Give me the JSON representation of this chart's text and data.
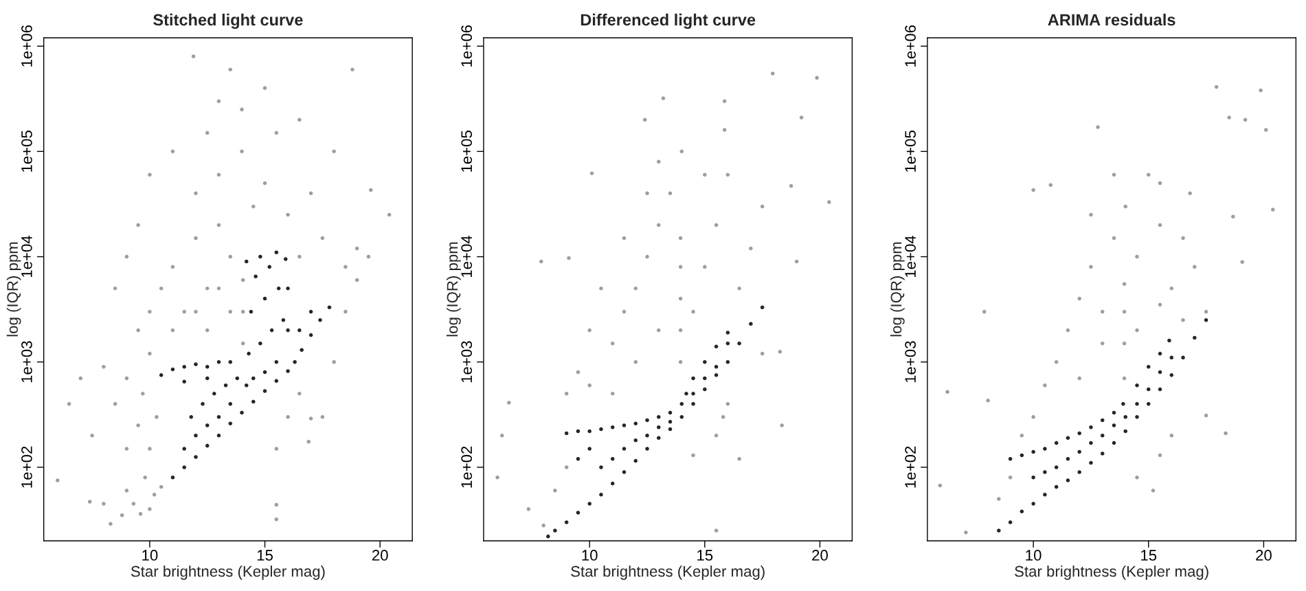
{
  "chart_data": [
    {
      "type": "scatter",
      "title": "Stitched light curve",
      "xlabel": "Star brightness (Kepler mag)",
      "ylabel": "log (IQR) ppm",
      "log": "y",
      "marker": "circle",
      "xlim": [
        5.4,
        21.4
      ],
      "ylim": [
        20,
        1200000
      ],
      "xticks": [
        10,
        15,
        20
      ],
      "yticks": [
        {
          "value": 100,
          "label": "1e+02"
        },
        {
          "value": 1000,
          "label": "1e+03"
        },
        {
          "value": 10000,
          "label": "1e+04"
        },
        {
          "value": 100000,
          "label": "1e+05"
        },
        {
          "value": 1000000,
          "label": "1e+06"
        }
      ],
      "series": [
        {
          "color": "#9e9e9e",
          "x": [
            8.3,
            8.8,
            9.3,
            9.6,
            10.0,
            10.2,
            9.0,
            9.8,
            10.5,
            8.0,
            7.4,
            6.0,
            9.0,
            9.5,
            8.5,
            9.0,
            8.0,
            7.0,
            6.5,
            7.5,
            10.0,
            10.3,
            9.7,
            10.0,
            9.5,
            10.0,
            10.5,
            11.0,
            11.5,
            12.0,
            12.5,
            13.0,
            13.5,
            12.0,
            13.0,
            14.0,
            14.5,
            15.0,
            15.5,
            14.0,
            13.0,
            12.5,
            11.0,
            10.0,
            9.5,
            9.0,
            8.5,
            11.9,
            13.5,
            15.0,
            16.0,
            16.5,
            17.0,
            17.5,
            18.0,
            18.5,
            19.0,
            18.8,
            19.6,
            20.4,
            16.5,
            17.5,
            17.0,
            16.9,
            16.5,
            18.0,
            18.5,
            19.0,
            19.5,
            15.5,
            16.0,
            15.5,
            15.5,
            14.05,
            14.05,
            14.05,
            11.0,
            12.0,
            13.0,
            12.5,
            13.5
          ],
          "values": [
            29,
            35,
            45,
            36,
            40,
            55,
            60,
            80,
            65,
            45,
            47,
            75,
            150,
            250,
            400,
            700,
            900,
            700,
            400,
            200,
            150,
            300,
            500,
            1200,
            2000,
            3000,
            5000,
            8000,
            3000,
            15000,
            5000,
            20000,
            10000,
            40000,
            60000,
            100000,
            30000,
            50000,
            150000,
            250000,
            300000,
            150000,
            100000,
            60000,
            20000,
            10000,
            5000,
            800000,
            600000,
            400000,
            25000,
            10000,
            40000,
            15000,
            100000,
            8000,
            12000,
            600000,
            43000,
            25000,
            200000,
            300,
            290,
            175,
            500,
            1000,
            3000,
            6000,
            10000,
            150,
            300,
            44,
            32,
            1500,
            3000,
            6000,
            2000,
            3000,
            5000,
            2000,
            3000
          ]
        },
        {
          "color": "#262626",
          "x": [
            11.0,
            11.5,
            12.0,
            12.5,
            13.0,
            13.5,
            14.0,
            14.5,
            15.0,
            15.5,
            16.0,
            11.5,
            12.0,
            12.5,
            13.0,
            13.5,
            11.8,
            12.3,
            12.8,
            13.3,
            13.8,
            10.5,
            11.0,
            11.5,
            12.0,
            12.5,
            13.0,
            13.5,
            11.5,
            12.5,
            14.2,
            14.5,
            15.0,
            15.5,
            14.3,
            14.8,
            15.3,
            15.8,
            14.4,
            15.0,
            15.6,
            14.6,
            15.2,
            15.9,
            16.0,
            16.0,
            14.2,
            15.5,
            14.8,
            16.3,
            16.6,
            17.0,
            17.4,
            17.8,
            16.5,
            17.0
          ],
          "values": [
            80,
            100,
            125,
            160,
            200,
            260,
            330,
            420,
            530,
            660,
            820,
            150,
            200,
            250,
            300,
            400,
            300,
            400,
            500,
            600,
            700,
            750,
            850,
            900,
            950,
            900,
            1000,
            1000,
            650,
            700,
            600,
            700,
            800,
            1000,
            1200,
            1500,
            2000,
            2500,
            3000,
            4000,
            5000,
            6500,
            8000,
            9500,
            5000,
            2000,
            9000,
            11000,
            10000,
            1000,
            1300,
            1800,
            2500,
            3300,
            2000,
            3000
          ]
        }
      ]
    },
    {
      "type": "scatter",
      "title": "Differenced light curve",
      "xlabel": "Star brightness (Kepler mag)",
      "ylabel": "log (IQR) ppm",
      "log": "y",
      "marker": "circle",
      "xlim": [
        5.4,
        21.4
      ],
      "ylim": [
        20,
        1200000
      ],
      "xticks": [
        10,
        15,
        20
      ],
      "yticks": [
        {
          "value": 100,
          "label": "1e+02"
        },
        {
          "value": 1000,
          "label": "1e+03"
        },
        {
          "value": 10000,
          "label": "1e+04"
        },
        {
          "value": 100000,
          "label": "1e+05"
        },
        {
          "value": 1000000,
          "label": "1e+06"
        }
      ],
      "series": [
        {
          "color": "#9e9e9e",
          "x": [
            6.0,
            6.2,
            6.5,
            7.35,
            8.0,
            7.9,
            9.1,
            10.1,
            12.4,
            13.2,
            15.86,
            15.86,
            17.95,
            19.87,
            19.2,
            20.4,
            18.75,
            18.99,
            18.27,
            18.35,
            17.5,
            11.0,
            11.5,
            12.0,
            12.5,
            13.0,
            13.5,
            12.0,
            13.0,
            14.5,
            15.0,
            15.5,
            15.0,
            14.0,
            13.0,
            12.5,
            11.5,
            10.5,
            10.0,
            9.5,
            9.0,
            16.5,
            17.0,
            16.0,
            17.5,
            15.5,
            16.0,
            15.8,
            14.5,
            11.0,
            10.0,
            9.0,
            8.5,
            16.5,
            15.5,
            13.95,
            13.95,
            13.95,
            13.95,
            13.95
          ],
          "values": [
            80,
            200,
            410,
            40,
            28,
            9000,
            9700,
            62000,
            200000,
            320000,
            300000,
            160000,
            550000,
            500000,
            210000,
            33000,
            47000,
            9000,
            1250,
            250,
            1200,
            1500,
            3000,
            5000,
            10000,
            20000,
            40000,
            1000,
            2000,
            3000,
            8000,
            20000,
            60000,
            100000,
            80000,
            40000,
            15000,
            5000,
            2000,
            800,
            500,
            5000,
            12000,
            60000,
            30000,
            200,
            400,
            300,
            130,
            500,
            600,
            100,
            60,
            120,
            25,
            1000,
            2000,
            4000,
            8000,
            15000
          ]
        },
        {
          "color": "#262626",
          "x": [
            8.2,
            8.5,
            9.0,
            9.5,
            10.0,
            10.5,
            11.0,
            11.5,
            12.0,
            12.5,
            13.0,
            13.5,
            14.0,
            14.5,
            15.0,
            15.5,
            16.0,
            16.5,
            17.0,
            17.5,
            9.0,
            9.5,
            10.0,
            10.5,
            11.0,
            11.5,
            12.0,
            12.5,
            13.0,
            13.5,
            10.5,
            11.0,
            11.5,
            12.0,
            12.5,
            13.0,
            13.5,
            14.0,
            14.5,
            15.0,
            15.5,
            16.0,
            15.5,
            15.0,
            14.5,
            14.2,
            16.0,
            10.0,
            9.5
          ],
          "values": [
            22,
            25,
            30,
            37,
            45,
            55,
            70,
            90,
            115,
            150,
            190,
            230,
            300,
            400,
            550,
            750,
            1000,
            1500,
            2300,
            3300,
            210,
            220,
            220,
            230,
            240,
            250,
            260,
            280,
            300,
            330,
            100,
            120,
            150,
            180,
            200,
            240,
            270,
            400,
            500,
            700,
            900,
            1500,
            1400,
            1000,
            700,
            500,
            1900,
            150,
            120
          ]
        }
      ]
    },
    {
      "type": "scatter",
      "title": "ARIMA residuals",
      "xlabel": "Star brightness (Kepler mag)",
      "ylabel": "log (IQR) ppm",
      "log": "y",
      "marker": "circle",
      "xlim": [
        5.4,
        21.4
      ],
      "ylim": [
        20,
        1200000
      ],
      "xticks": [
        10,
        15,
        20
      ],
      "yticks": [
        {
          "value": 100,
          "label": "1e+02"
        },
        {
          "value": 1000,
          "label": "1e+03"
        },
        {
          "value": 10000,
          "label": "1e+04"
        },
        {
          "value": 100000,
          "label": "1e+05"
        },
        {
          "value": 1000000,
          "label": "1e+06"
        }
      ],
      "series": [
        {
          "color": "#9e9e9e",
          "x": [
            17.95,
            19.87,
            18.5,
            19.2,
            20.1,
            20.4,
            12.8,
            10.0,
            10.75,
            6.27,
            5.95,
            7.07,
            8.03,
            7.87,
            18.35,
            17.5,
            19.07,
            18.67,
            11.0,
            11.5,
            12.0,
            12.5,
            13.0,
            13.5,
            14.0,
            15.0,
            15.5,
            14.5,
            16.0,
            17.0,
            17.5,
            12.0,
            13.0,
            14.5,
            15.5,
            16.5,
            10.5,
            10.0,
            9.5,
            9.0,
            8.5,
            15.5,
            16.0,
            15.2,
            14.5,
            12.5,
            13.5,
            15.5,
            16.5,
            16.8,
            13.95,
            13.95,
            13.95,
            13.95
          ],
          "values": [
            410000,
            380000,
            210000,
            200000,
            160000,
            28000,
            170000,
            43000,
            48000,
            520,
            67,
            24,
            430,
            3000,
            210,
            310,
            8900,
            24000,
            1000,
            2000,
            4000,
            8000,
            3000,
            15000,
            30000,
            60000,
            20000,
            10000,
            5000,
            8000,
            3000,
            700,
            1500,
            2000,
            3500,
            2500,
            600,
            300,
            200,
            80,
            50,
            130,
            200,
            60,
            80,
            25000,
            60000,
            50000,
            15000,
            40000,
            700,
            1500,
            3000,
            5500
          ]
        },
        {
          "color": "#262626",
          "x": [
            8.5,
            9.0,
            9.5,
            10.0,
            10.5,
            11.0,
            11.5,
            12.0,
            12.5,
            13.0,
            13.5,
            14.0,
            14.5,
            15.0,
            15.5,
            16.0,
            16.5,
            17.0,
            17.5,
            9.0,
            9.5,
            10.0,
            10.5,
            11.0,
            11.5,
            12.0,
            12.5,
            13.0,
            13.5,
            13.9,
            10.0,
            10.5,
            11.0,
            11.5,
            12.0,
            12.5,
            13.0,
            13.5,
            14.0,
            14.5,
            15.0,
            15.5,
            16.0,
            15.9,
            15.5,
            14.5,
            15.0
          ],
          "values": [
            25,
            30,
            38,
            45,
            55,
            65,
            75,
            90,
            110,
            135,
            170,
            220,
            300,
            400,
            550,
            750,
            1100,
            1700,
            2500,
            120,
            130,
            140,
            150,
            170,
            190,
            210,
            240,
            280,
            330,
            400,
            80,
            90,
            100,
            120,
            140,
            170,
            200,
            250,
            300,
            400,
            550,
            800,
            1100,
            1600,
            1200,
            600,
            900
          ]
        }
      ]
    }
  ]
}
